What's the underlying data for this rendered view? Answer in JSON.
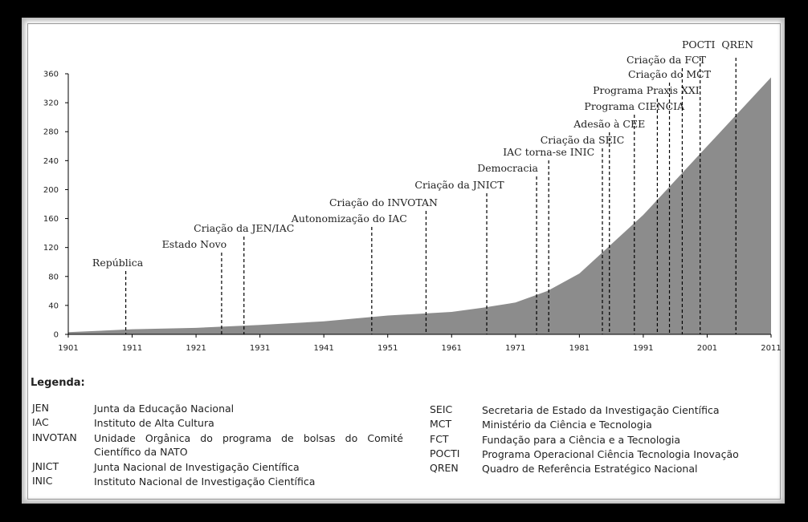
{
  "chart_data": {
    "type": "area",
    "x": [
      1901,
      1911,
      1921,
      1931,
      1941,
      1951,
      1961,
      1966,
      1971,
      1976,
      1981,
      1991,
      2001,
      2011
    ],
    "values": [
      3,
      7,
      9,
      13,
      18,
      26,
      31,
      37,
      44,
      60,
      84,
      165,
      260,
      355
    ],
    "color": "#8c8c8c",
    "xlim": [
      1901,
      2011
    ],
    "xticks": [
      1901,
      1911,
      1921,
      1931,
      1941,
      1951,
      1961,
      1971,
      1981,
      1991,
      2001,
      2011
    ],
    "ylim": [
      0,
      360
    ],
    "yticks": [
      0,
      40,
      80,
      120,
      160,
      200,
      240,
      280,
      320,
      360
    ],
    "grid": false,
    "annotations": [
      {
        "text": "República",
        "x": 1910
      },
      {
        "text": "Estado Novo",
        "x": 1925
      },
      {
        "text": "Criação da JEN/IAC",
        "x": 1928.5
      },
      {
        "text": "Autonomização do IAC",
        "x": 1948.5
      },
      {
        "text": "Criação do INVOTAN",
        "x": 1957
      },
      {
        "text": "Criação da JNICT",
        "x": 1966.5
      },
      {
        "text": "Democracia",
        "x": 1974.3
      },
      {
        "text": "IAC torna-se INIC",
        "x": 1976.2
      },
      {
        "text": "Criação da SEIC",
        "x": 1984.6
      },
      {
        "text": "Adesão à CEE",
        "x": 1985.7
      },
      {
        "text": "Programa CIENCIA",
        "x": 1989.6
      },
      {
        "text": "Programa Praxis XXI",
        "x": 1993.2
      },
      {
        "text": "Criação do MCT",
        "x": 1995.1
      },
      {
        "text": "Criação da FCT",
        "x": 1997.1
      },
      {
        "text": "POCTI",
        "x": 1999.9
      },
      {
        "text": "QREN",
        "x": 2005.5
      }
    ]
  },
  "legend": {
    "title": "Legenda:",
    "left": [
      {
        "abbr": "JEN",
        "text": "Junta da Educação Nacional"
      },
      {
        "abbr": "IAC",
        "text": "Instituto de Alta Cultura"
      },
      {
        "abbr": "INVOTAN",
        "text": "Unidade Orgânica do programa de bolsas do Comité Científico da NATO"
      },
      {
        "abbr": "JNICT",
        "text": "Junta Nacional de Investigação Científica"
      },
      {
        "abbr": "INIC",
        "text": "Instituto Nacional de Investigação Científica"
      }
    ],
    "right": [
      {
        "abbr": "SEIC",
        "text": "Secretaria de Estado da Investigação Científica"
      },
      {
        "abbr": "MCT",
        "text": "Ministério da Ciência e Tecnologia"
      },
      {
        "abbr": "FCT",
        "text": "Fundação para a Ciência e a Tecnologia"
      },
      {
        "abbr": "POCTI",
        "text": "Programa Operacional Ciência Tecnologia Inovação"
      },
      {
        "abbr": "QREN",
        "text": "Quadro de Referência Estratégico Nacional"
      }
    ]
  }
}
